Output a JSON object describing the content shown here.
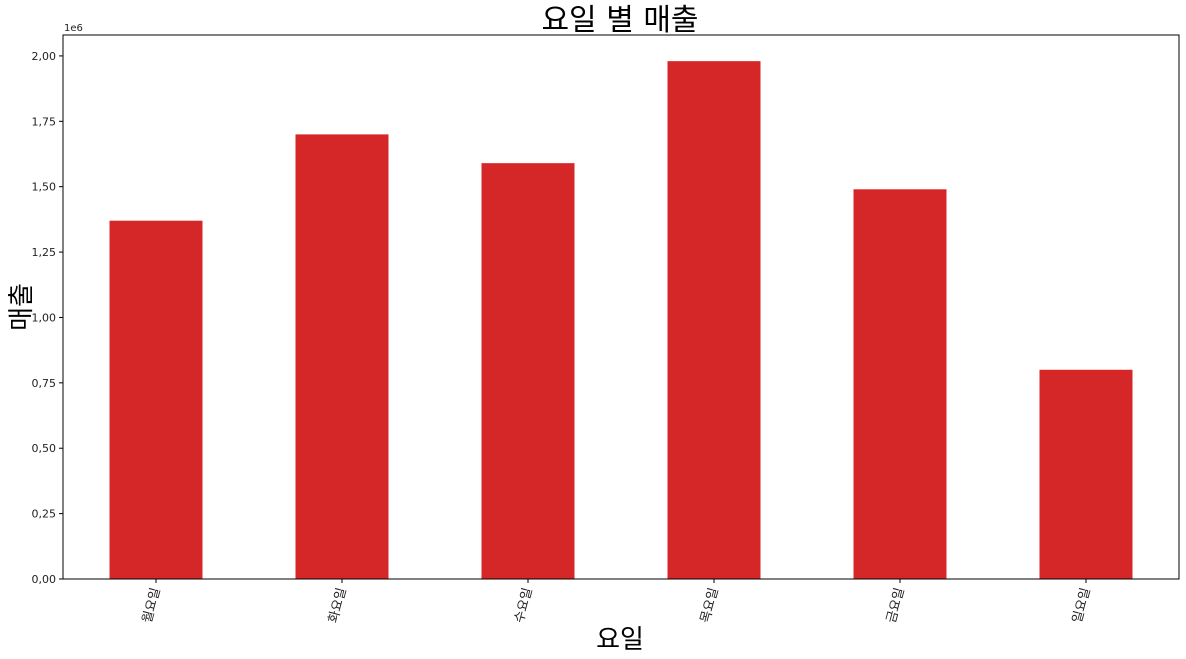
{
  "chart_data": {
    "type": "bar",
    "title": "요일 별 매출",
    "xlabel": "요일",
    "ylabel": "매출",
    "y_offset_label": "1e6",
    "categories": [
      "월요일",
      "화요일",
      "수요일",
      "목요일",
      "금요일",
      "일요일"
    ],
    "values": [
      1370000,
      1700000,
      1590000,
      1980000,
      1490000,
      800000
    ],
    "ylim": [
      0,
      2080000
    ],
    "yticks": [
      0,
      250000,
      500000,
      750000,
      1000000,
      1250000,
      1500000,
      1750000,
      2000000
    ],
    "ytick_labels": [
      "0,00",
      "0,25",
      "0,50",
      "0,75",
      "1,00",
      "1,25",
      "1,50",
      "1,75",
      "2,00"
    ],
    "bar_color": "#d62728",
    "grid": false,
    "legend": "none"
  }
}
